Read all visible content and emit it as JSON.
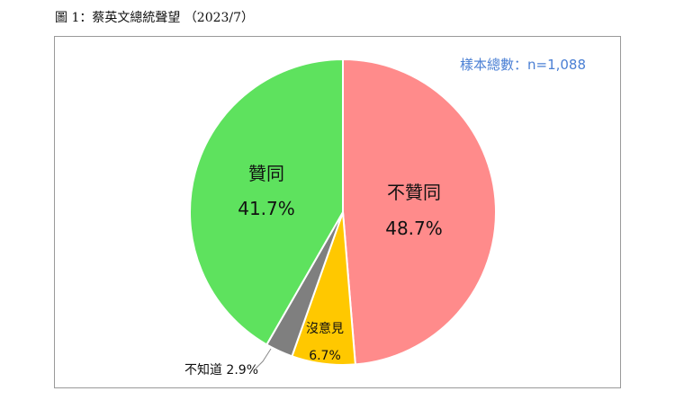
{
  "caption": "圖 1：蔡英文總統聲望  （2023/7）",
  "chart_data": {
    "type": "pie",
    "title": "",
    "note": "樣本總數：n=1,088",
    "labels": [
      "不贊同",
      "沒意見",
      "不知道",
      "贊同"
    ],
    "values": [
      48.7,
      6.7,
      2.9,
      41.7
    ],
    "value_labels": [
      "48.7%",
      "6.7%",
      "2.9%",
      "41.7%"
    ],
    "colors": [
      "#ff8b8b",
      "#ffc800",
      "#7f7f7f",
      "#5ee25e"
    ],
    "start_angle_deg": 0,
    "direction": "clockwise",
    "legend": "none",
    "external_label": "不知道 2.9%"
  }
}
